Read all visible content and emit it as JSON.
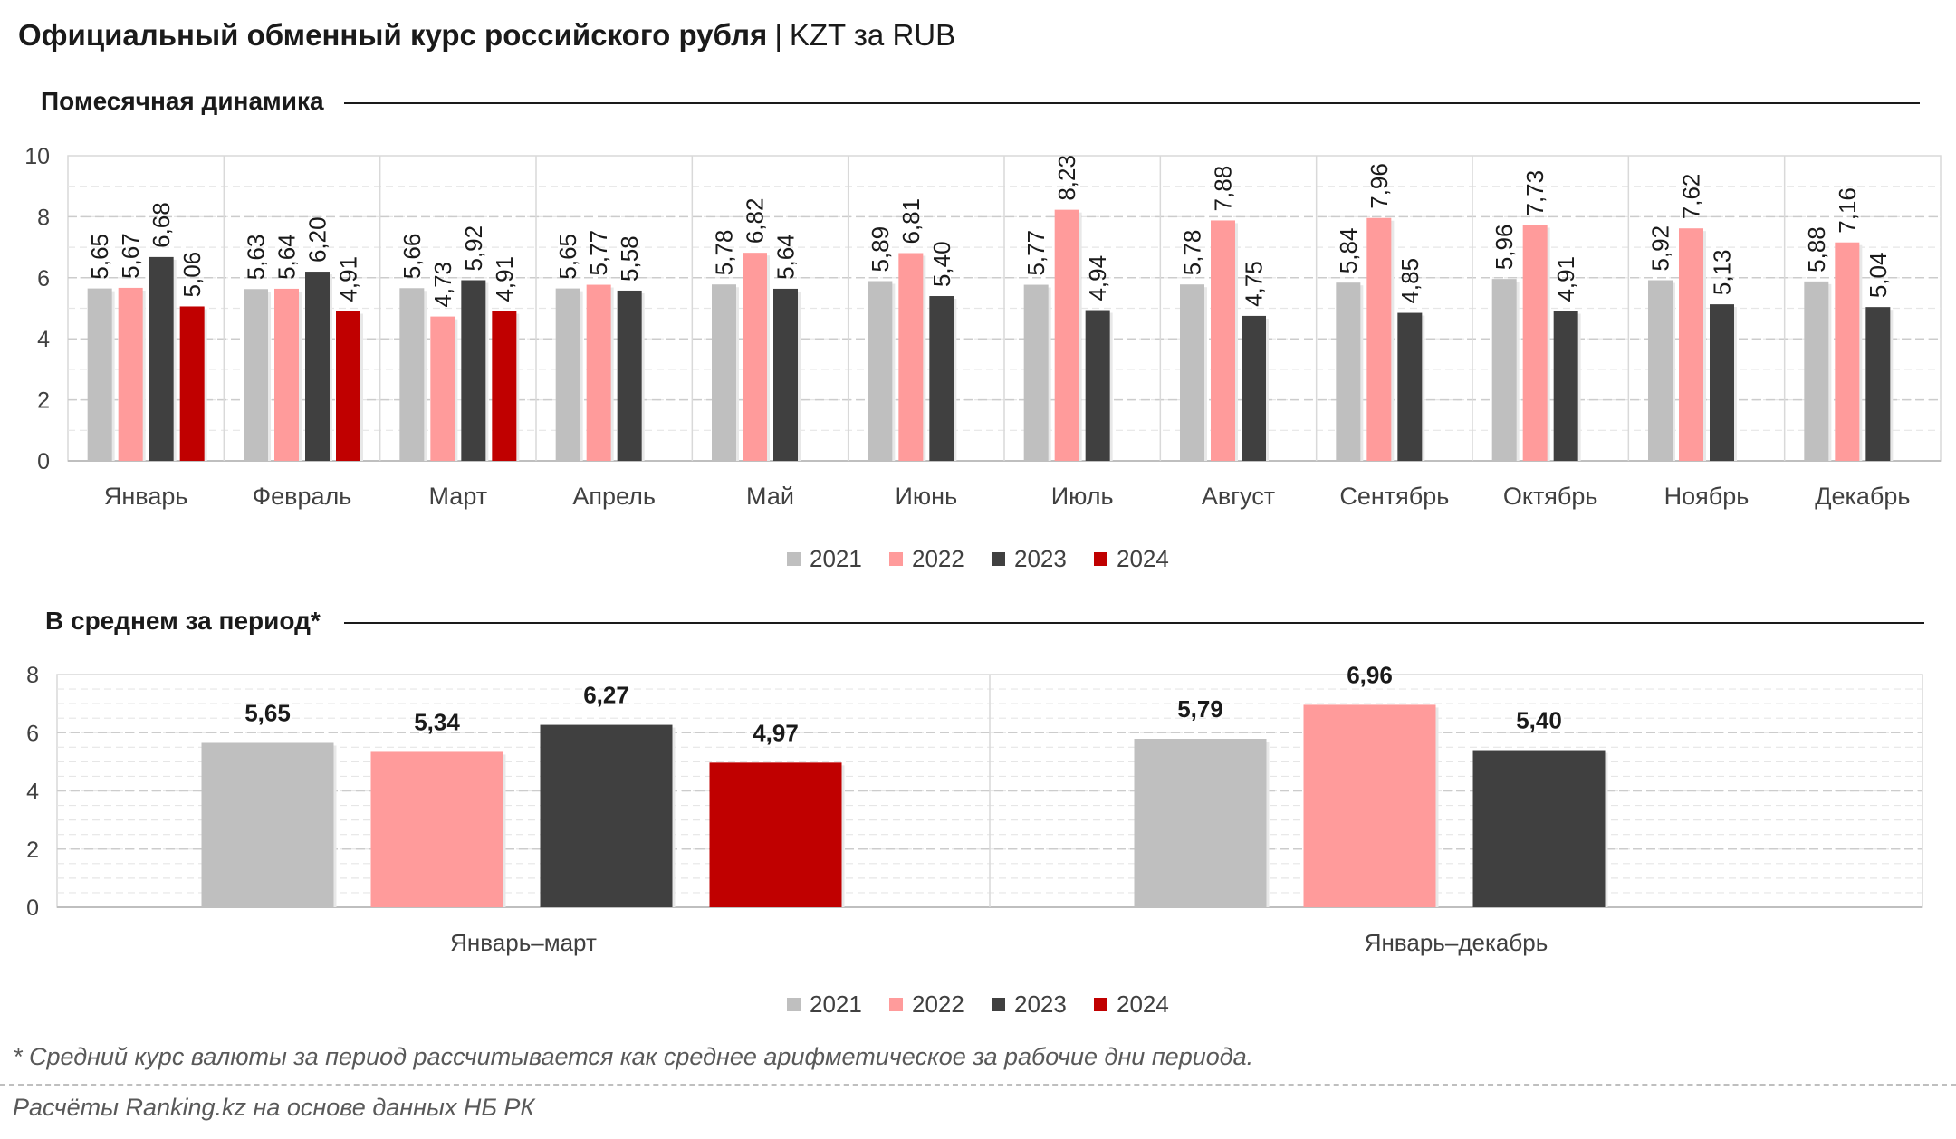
{
  "title": {
    "main": "Официальный обменный курс российского рубля",
    "separator": "|",
    "unit": "KZT за RUB"
  },
  "sections": {
    "monthly": "Помесячная динамика",
    "average": "В среднем за период*"
  },
  "footnote": "* Средний курс валюты за период рассчитывается как среднее арифметическое за рабочие дни периода.",
  "source": "Расчёты Ranking.kz на основе данных НБ РК",
  "colors": {
    "2021": "#bfbfbf",
    "2022": "#ff9b9b",
    "2023": "#404040",
    "2024": "#c00000"
  },
  "chart_data": [
    {
      "type": "bar",
      "categories": [
        "Январь",
        "Февраль",
        "Март",
        "Апрель",
        "Май",
        "Июнь",
        "Июль",
        "Август",
        "Сентябрь",
        "Октябрь",
        "Ноябрь",
        "Декабрь"
      ],
      "ylim": [
        0,
        10
      ],
      "yticks": [
        0,
        2,
        4,
        6,
        8,
        10
      ],
      "grid": true,
      "legend": "bottom-center",
      "series": [
        {
          "name": "2021",
          "values": [
            5.65,
            5.63,
            5.66,
            5.65,
            5.78,
            5.89,
            5.77,
            5.78,
            5.84,
            5.96,
            5.92,
            5.88
          ],
          "labels": [
            "5,65",
            "5,63",
            "5,66",
            "5,65",
            "5,78",
            "5,89",
            "5,77",
            "5,78",
            "5,84",
            "5,96",
            "5,92",
            "5,88"
          ]
        },
        {
          "name": "2022",
          "values": [
            5.67,
            5.64,
            4.73,
            5.77,
            6.82,
            6.81,
            8.23,
            7.88,
            7.96,
            7.73,
            7.62,
            7.16
          ],
          "labels": [
            "5,67",
            "5,64",
            "4,73",
            "5,77",
            "6,82",
            "6,81",
            "8,23",
            "7,88",
            "7,96",
            "7,73",
            "7,62",
            "7,16"
          ]
        },
        {
          "name": "2023",
          "values": [
            6.68,
            6.2,
            5.92,
            5.58,
            5.64,
            5.4,
            4.94,
            4.75,
            4.85,
            4.91,
            5.13,
            5.04
          ],
          "labels": [
            "6,68",
            "6,20",
            "5,92",
            "5,58",
            "5,64",
            "5,40",
            "4,94",
            "4,75",
            "4,85",
            "4,91",
            "5,13",
            "5,04"
          ]
        },
        {
          "name": "2024",
          "values": [
            5.06,
            4.91,
            4.91,
            null,
            null,
            null,
            null,
            null,
            null,
            null,
            null,
            null
          ],
          "labels": [
            "5,06",
            "4,91",
            "4,91",
            "",
            "",
            "",
            "",
            "",
            "",
            "",
            "",
            ""
          ]
        }
      ]
    },
    {
      "type": "bar",
      "categories": [
        "Январь–март",
        "Январь–декабрь"
      ],
      "ylim": [
        0,
        8
      ],
      "yticks": [
        0,
        2,
        4,
        6,
        8
      ],
      "grid": true,
      "legend": "bottom-center",
      "series": [
        {
          "name": "2021",
          "values": [
            5.65,
            5.79
          ],
          "labels": [
            "5,65",
            "5,79"
          ]
        },
        {
          "name": "2022",
          "values": [
            5.34,
            6.96
          ],
          "labels": [
            "5,34",
            "6,96"
          ]
        },
        {
          "name": "2023",
          "values": [
            6.27,
            5.4
          ],
          "labels": [
            "6,27",
            "5,40"
          ]
        },
        {
          "name": "2024",
          "values": [
            4.97,
            null
          ],
          "labels": [
            "4,97",
            ""
          ]
        }
      ]
    }
  ]
}
